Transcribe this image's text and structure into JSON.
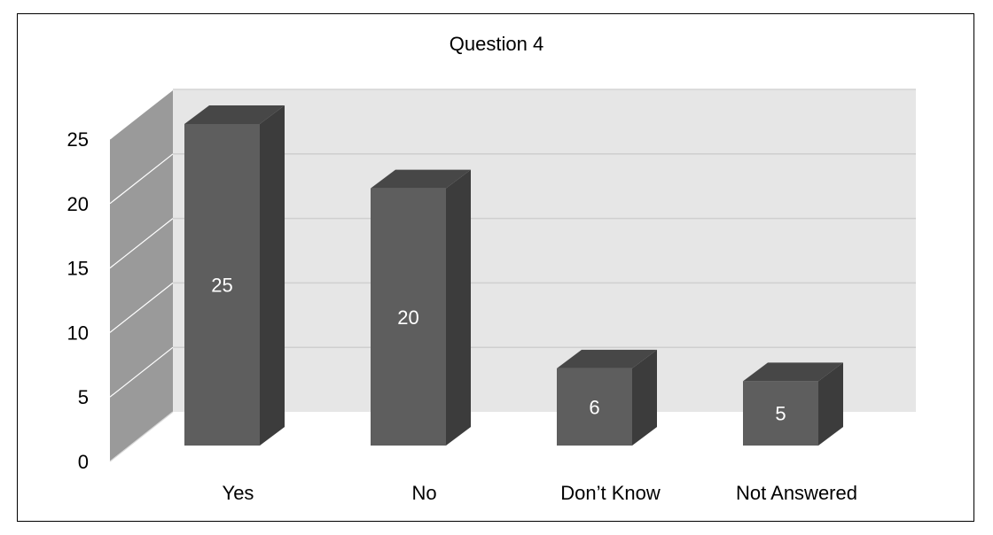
{
  "chart_data": {
    "type": "bar",
    "title": "Question 4",
    "categories": [
      "Yes",
      "No",
      "Don’t Know",
      "Not Answered"
    ],
    "values": [
      25,
      20,
      6,
      5
    ],
    "data_labels": [
      "25",
      "20",
      "6",
      "5"
    ],
    "y_ticks": [
      "0",
      "5",
      "10",
      "15",
      "20",
      "25"
    ],
    "ylim": [
      0,
      25
    ],
    "xlabel": "",
    "ylabel": "",
    "grid": true,
    "style": "3d-column",
    "colors": {
      "bar_front": "#5e5e5e",
      "bar_side": "#3c3c3c",
      "bar_top": "#474747",
      "back_wall": "#e6e6e6",
      "side_wall": "#9a9a9a",
      "gridline": "#cfcfcf"
    }
  }
}
